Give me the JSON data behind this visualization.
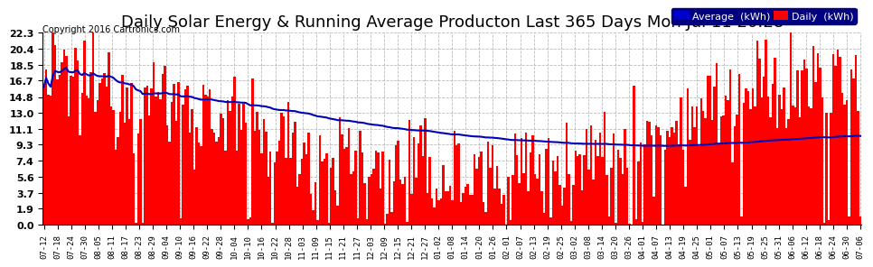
{
  "title": "Daily Solar Energy & Running Average Producton Last 365 Days Mon Jul 11 20:28",
  "copyright": "Copyright 2016 Cartronics.com",
  "yticks": [
    0.0,
    1.9,
    3.7,
    5.6,
    7.4,
    9.3,
    11.1,
    13.0,
    14.8,
    16.7,
    18.5,
    20.4,
    22.3
  ],
  "ylim": [
    0,
    22.3
  ],
  "bar_color": "#FF0000",
  "avg_line_color": "#0000BB",
  "background_color": "#FFFFFF",
  "grid_color": "#AAAAAA",
  "title_fontsize": 13,
  "legend_avg_bg": "#0000CC",
  "legend_daily_bg": "#FF0000",
  "n_days": 365,
  "xtick_labels": [
    "07-12",
    "07-18",
    "07-24",
    "07-30",
    "08-05",
    "08-11",
    "08-17",
    "08-23",
    "08-29",
    "09-04",
    "09-10",
    "09-16",
    "09-22",
    "09-28",
    "10-04",
    "10-10",
    "10-16",
    "10-22",
    "10-28",
    "11-03",
    "11-09",
    "11-15",
    "11-21",
    "11-27",
    "12-03",
    "12-09",
    "12-15",
    "12-21",
    "12-27",
    "01-02",
    "01-08",
    "01-14",
    "01-20",
    "01-26",
    "02-01",
    "02-07",
    "02-13",
    "02-19",
    "02-25",
    "03-02",
    "03-08",
    "03-14",
    "03-20",
    "03-26",
    "04-01",
    "04-07",
    "04-13",
    "04-19",
    "04-25",
    "05-01",
    "05-07",
    "05-13",
    "05-19",
    "05-25",
    "05-31",
    "06-06",
    "06-12",
    "06-18",
    "06-24",
    "06-30",
    "07-06"
  ]
}
